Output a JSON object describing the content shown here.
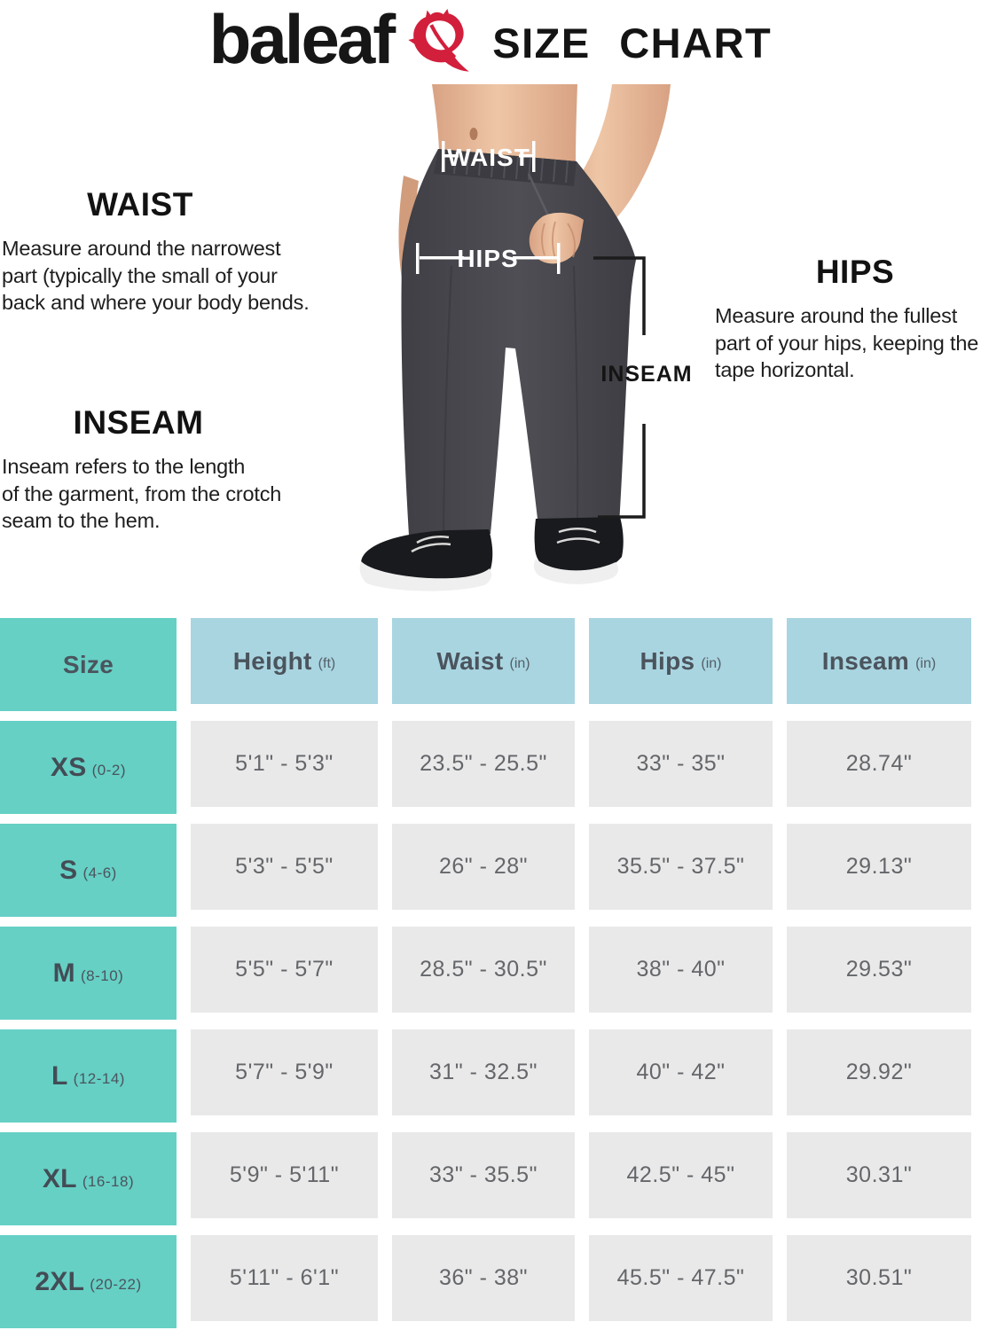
{
  "header": {
    "brand": "baleaf",
    "title": "SIZE CHART",
    "leaf_icon": "red-leaf-flame",
    "accent_red": "#d21f3c"
  },
  "guide": {
    "waist": {
      "heading": "WAIST",
      "description": "Measure around the narrowest\npart (typically the small of your\nback and where your body bends."
    },
    "hips": {
      "heading": "HIPS",
      "description": "Measure around the fullest\npart of your hips, keeping the\ntape horizontal."
    },
    "inseam": {
      "heading": "INSEAM",
      "description": "Inseam refers to the length\nof the garment, from the crotch\nseam to the hem."
    }
  },
  "figure": {
    "waist_tag": "WAIST",
    "hips_tag": "HIPS",
    "inseam_tag": "INSEAM"
  },
  "table": {
    "columns": [
      {
        "label": "Size",
        "unit": ""
      },
      {
        "label": "Height",
        "unit": "(ft)"
      },
      {
        "label": "Waist",
        "unit": "(in)"
      },
      {
        "label": "Hips",
        "unit": "(in)"
      },
      {
        "label": "Inseam",
        "unit": "(in)"
      }
    ],
    "rows": [
      {
        "size": "XS",
        "size_range": "(0-2)",
        "height": "5'1\" - 5'3\"",
        "waist": "23.5\" - 25.5\"",
        "hips": "33\" - 35\"",
        "inseam": "28.74\""
      },
      {
        "size": "S",
        "size_range": "(4-6)",
        "height": "5'3\" - 5'5\"",
        "waist": "26\" - 28\"",
        "hips": "35.5\" - 37.5\"",
        "inseam": "29.13\""
      },
      {
        "size": "M",
        "size_range": "(8-10)",
        "height": "5'5\" - 5'7\"",
        "waist": "28.5\" - 30.5\"",
        "hips": "38\" - 40\"",
        "inseam": "29.53\""
      },
      {
        "size": "L",
        "size_range": "(12-14)",
        "height": "5'7\" - 5'9\"",
        "waist": "31\" - 32.5\"",
        "hips": "40\" - 42\"",
        "inseam": "29.92\""
      },
      {
        "size": "XL",
        "size_range": "(16-18)",
        "height": "5'9\" - 5'11\"",
        "waist": "33\" - 35.5\"",
        "hips": "42.5\" - 45\"",
        "inseam": "30.31\""
      },
      {
        "size": "2XL",
        "size_range": "(20-22)",
        "height": "5'11\" - 6'1\"",
        "waist": "36\" - 38\"",
        "hips": "45.5\" - 47.5\"",
        "inseam": "30.51\""
      }
    ]
  },
  "chart_data": {
    "type": "table",
    "title": "baleaf SIZE CHART",
    "columns": [
      "Size",
      "Height (ft)",
      "Waist (in)",
      "Hips (in)",
      "Inseam (in)"
    ],
    "rows": [
      [
        "XS (0-2)",
        "5'1\" - 5'3\"",
        "23.5\" - 25.5\"",
        "33\" - 35\"",
        "28.74\""
      ],
      [
        "S (4-6)",
        "5'3\" - 5'5\"",
        "26\" - 28\"",
        "35.5\" - 37.5\"",
        "29.13\""
      ],
      [
        "M (8-10)",
        "5'5\" - 5'7\"",
        "28.5\" - 30.5\"",
        "38\" - 40\"",
        "29.53\""
      ],
      [
        "L (12-14)",
        "5'7\" - 5'9\"",
        "31\" - 32.5\"",
        "40\" - 42\"",
        "29.92\""
      ],
      [
        "XL (16-18)",
        "5'9\" - 5'11\"",
        "33\" - 35.5\"",
        "42.5\" - 45\"",
        "30.31\""
      ],
      [
        "2XL (20-22)",
        "5'11\" - 6'1\"",
        "36\" - 38\"",
        "45.5\" - 47.5\"",
        "30.51\""
      ]
    ]
  },
  "colors": {
    "teal": "#66d0c5",
    "header_blue": "#a9d5e1",
    "row_gray": "#e9e9e9",
    "leaf_red": "#d21f3c",
    "pants": "#47474c"
  }
}
